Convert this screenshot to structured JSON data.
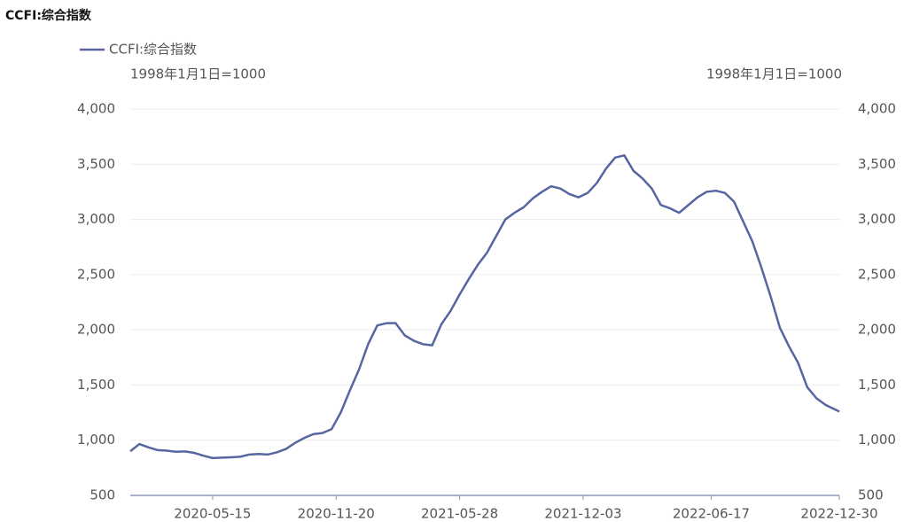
{
  "chart_data": {
    "type": "line",
    "title": "CCFI:综合指数",
    "ylabel": "1998年1月1日=1000",
    "y2label": "1998年1月1日=1000",
    "x": [
      "2020-01-10",
      "2020-01-24",
      "2020-02-07",
      "2020-02-21",
      "2020-03-06",
      "2020-03-20",
      "2020-04-03",
      "2020-04-17",
      "2020-05-01",
      "2020-05-15",
      "2020-05-29",
      "2020-06-12",
      "2020-06-26",
      "2020-07-10",
      "2020-07-24",
      "2020-08-07",
      "2020-08-21",
      "2020-09-04",
      "2020-09-18",
      "2020-10-02",
      "2020-10-16",
      "2020-10-30",
      "2020-11-13",
      "2020-11-27",
      "2020-12-11",
      "2020-12-25",
      "2021-01-08",
      "2021-01-22",
      "2021-02-05",
      "2021-02-19",
      "2021-03-05",
      "2021-03-19",
      "2021-04-02",
      "2021-04-16",
      "2021-04-30",
      "2021-05-14",
      "2021-05-28",
      "2021-06-11",
      "2021-06-25",
      "2021-07-09",
      "2021-07-23",
      "2021-08-06",
      "2021-08-20",
      "2021-09-03",
      "2021-09-17",
      "2021-10-01",
      "2021-10-15",
      "2021-10-29",
      "2021-11-12",
      "2021-11-26",
      "2021-12-10",
      "2021-12-24",
      "2022-01-07",
      "2022-01-21",
      "2022-02-04",
      "2022-02-18",
      "2022-03-04",
      "2022-03-18",
      "2022-04-01",
      "2022-04-15",
      "2022-04-29",
      "2022-05-13",
      "2022-05-27",
      "2022-06-10",
      "2022-06-24",
      "2022-07-08",
      "2022-07-22",
      "2022-08-05",
      "2022-08-19",
      "2022-09-02",
      "2022-09-16",
      "2022-09-30",
      "2022-10-14",
      "2022-10-28",
      "2022-11-11",
      "2022-11-25",
      "2022-12-09",
      "2022-12-23",
      "2022-12-30"
    ],
    "series": [
      {
        "name": "CCFI:综合指数",
        "color": "#5765a0",
        "values": [
          900,
          965,
          935,
          910,
          905,
          895,
          898,
          885,
          860,
          838,
          842,
          845,
          850,
          870,
          875,
          870,
          890,
          920,
          975,
          1020,
          1055,
          1065,
          1100,
          1250,
          1450,
          1640,
          1870,
          2040,
          2060,
          2060,
          1950,
          1900,
          1870,
          1860,
          2050,
          2170,
          2320,
          2460,
          2590,
          2700,
          2850,
          3000,
          3060,
          3110,
          3190,
          3250,
          3300,
          3280,
          3230,
          3200,
          3240,
          3330,
          3460,
          3560,
          3580,
          3440,
          3370,
          3280,
          3130,
          3100,
          3060,
          3130,
          3200,
          3250,
          3260,
          3240,
          3160,
          2980,
          2800,
          2560,
          2300,
          2020,
          1850,
          1700,
          1480,
          1380,
          1320,
          1280,
          1260
        ]
      }
    ],
    "xlim": [
      "2020-01-10",
      "2022-12-30"
    ],
    "xticks": [
      "2020-05-15",
      "2020-11-20",
      "2021-05-28",
      "2021-12-03",
      "2022-06-17",
      "2022-12-30"
    ],
    "ylim": [
      500,
      4000
    ],
    "yticks": [
      500,
      {
        "value": 1000,
        "label": "1,000"
      },
      {
        "value": 1500,
        "label": "1,500"
      },
      {
        "value": 2000,
        "label": "2,000"
      },
      {
        "value": 2500,
        "label": "2,500"
      },
      {
        "value": 3000,
        "label": "3,000"
      },
      {
        "value": 3500,
        "label": "3,500"
      },
      {
        "value": 4000,
        "label": "4,000"
      }
    ],
    "y2lim": [
      500,
      4000
    ],
    "y2ticks": [
      500,
      {
        "value": 1000,
        "label": "1,000"
      },
      {
        "value": 1500,
        "label": "1,500"
      },
      {
        "value": 2000,
        "label": "2,000"
      },
      {
        "value": 2500,
        "label": "2,500"
      },
      {
        "value": 3000,
        "label": "3,000"
      },
      {
        "value": 3500,
        "label": "3,500"
      },
      {
        "value": 4000,
        "label": "4,000"
      }
    ],
    "grid": true,
    "legend": "top-left"
  }
}
